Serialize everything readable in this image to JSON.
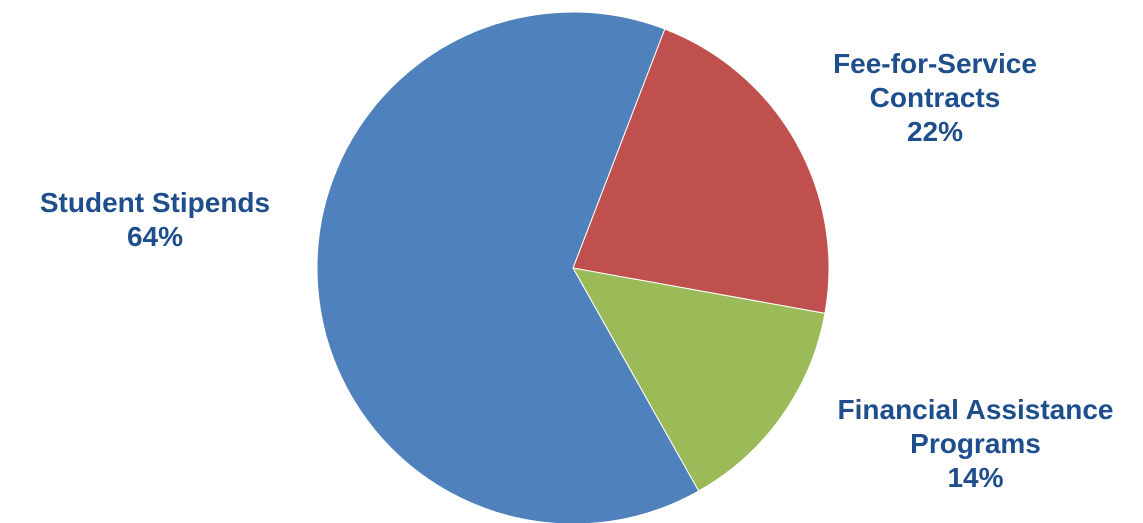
{
  "chart_data": {
    "type": "pie",
    "slices": [
      {
        "label_lines": [
          "Student Stipends"
        ],
        "percent_label": "64%",
        "value": 64,
        "color": "#4f81bd"
      },
      {
        "label_lines": [
          "Fee-for-Service",
          "Contracts"
        ],
        "percent_label": "22%",
        "value": 22,
        "color": "#c0504d"
      },
      {
        "label_lines": [
          "Financial Assistance",
          "Programs"
        ],
        "percent_label": "14%",
        "value": 14,
        "color": "#9bbb59"
      }
    ],
    "start_angle_deg": 21,
    "direction": "clockwise",
    "legend": "none"
  }
}
